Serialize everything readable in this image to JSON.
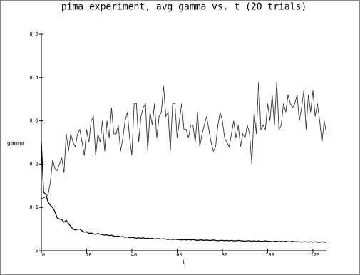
{
  "chart_data": {
    "type": "line",
    "title": "pima experiment, avg gamma vs. t (20 trials)",
    "x_label": "t",
    "y_label": "gamma",
    "x": [
      0,
      1,
      2,
      3,
      4,
      5,
      6,
      7,
      8,
      9,
      10,
      11,
      12,
      13,
      14,
      15,
      16,
      17,
      18,
      19,
      20,
      21,
      22,
      23,
      24,
      25,
      26,
      27,
      28,
      29,
      30,
      31,
      32,
      33,
      34,
      35,
      36,
      37,
      38,
      39,
      40,
      41,
      42,
      43,
      44,
      45,
      46,
      47,
      48,
      49,
      50,
      51,
      52,
      53,
      54,
      55,
      56,
      57,
      58,
      59,
      60,
      61,
      62,
      63,
      64,
      65,
      66,
      67,
      68,
      69,
      70,
      71,
      72,
      73,
      74,
      75,
      76,
      77,
      78,
      79,
      80,
      81,
      82,
      83,
      84,
      85,
      86,
      87,
      88,
      89,
      90,
      91,
      92,
      93,
      94,
      95,
      96,
      97,
      98,
      99,
      100,
      101,
      102,
      103,
      104,
      105,
      106,
      107,
      108,
      109,
      110,
      111,
      112,
      113,
      114,
      115,
      116,
      117,
      118,
      119,
      120,
      121,
      122,
      123,
      124,
      125,
      126
    ],
    "series": [
      {
        "color": "#333333",
        "values": [
          0.12,
          0.122,
          0.125,
          0.13,
          0.16,
          0.21,
          0.19,
          0.185,
          0.2,
          0.215,
          0.18,
          0.27,
          0.23,
          0.27,
          0.25,
          0.24,
          0.27,
          0.28,
          0.25,
          0.22,
          0.28,
          0.25,
          0.3,
          0.31,
          0.22,
          0.27,
          0.25,
          0.3,
          0.23,
          0.3,
          0.26,
          0.33,
          0.27,
          0.27,
          0.29,
          0.23,
          0.26,
          0.3,
          0.32,
          0.26,
          0.22,
          0.34,
          0.34,
          0.25,
          0.31,
          0.33,
          0.34,
          0.23,
          0.32,
          0.29,
          0.34,
          0.26,
          0.31,
          0.32,
          0.38,
          0.31,
          0.32,
          0.23,
          0.34,
          0.34,
          0.26,
          0.3,
          0.34,
          0.28,
          0.28,
          0.26,
          0.29,
          0.29,
          0.25,
          0.32,
          0.24,
          0.27,
          0.29,
          0.31,
          0.28,
          0.25,
          0.23,
          0.24,
          0.29,
          0.32,
          0.3,
          0.26,
          0.25,
          0.24,
          0.27,
          0.3,
          0.26,
          0.29,
          0.24,
          0.27,
          0.26,
          0.29,
          0.27,
          0.2,
          0.32,
          0.27,
          0.39,
          0.28,
          0.29,
          0.28,
          0.34,
          0.3,
          0.36,
          0.29,
          0.39,
          0.28,
          0.29,
          0.34,
          0.32,
          0.36,
          0.34,
          0.33,
          0.34,
          0.36,
          0.3,
          0.33,
          0.37,
          0.28,
          0.36,
          0.32,
          0.37,
          0.31,
          0.34,
          0.3,
          0.25,
          0.3,
          0.27
        ]
      },
      {
        "color": "#000000",
        "values": [
          0.25,
          0.135,
          0.13,
          0.112,
          0.105,
          0.1,
          0.09,
          0.076,
          0.073,
          0.072,
          0.066,
          0.07,
          0.063,
          0.056,
          0.05,
          0.048,
          0.05,
          0.05,
          0.046,
          0.043,
          0.044,
          0.04,
          0.041,
          0.039,
          0.038,
          0.04,
          0.038,
          0.037,
          0.036,
          0.037,
          0.035,
          0.036,
          0.034,
          0.033,
          0.034,
          0.032,
          0.033,
          0.031,
          0.032,
          0.03,
          0.031,
          0.03,
          0.029,
          0.03,
          0.029,
          0.03,
          0.028,
          0.029,
          0.028,
          0.029,
          0.027,
          0.028,
          0.028,
          0.027,
          0.028,
          0.027,
          0.026,
          0.027,
          0.026,
          0.027,
          0.026,
          0.026,
          0.025,
          0.026,
          0.025,
          0.026,
          0.025,
          0.026,
          0.025,
          0.024,
          0.025,
          0.025,
          0.024,
          0.025,
          0.024,
          0.024,
          0.025,
          0.024,
          0.023,
          0.024,
          0.024,
          0.023,
          0.024,
          0.023,
          0.024,
          0.023,
          0.023,
          0.024,
          0.023,
          0.023,
          0.022,
          0.023,
          0.023,
          0.022,
          0.023,
          0.022,
          0.023,
          0.022,
          0.022,
          0.023,
          0.022,
          0.022,
          0.021,
          0.022,
          0.022,
          0.021,
          0.022,
          0.021,
          0.022,
          0.021,
          0.021,
          0.022,
          0.021,
          0.021,
          0.021,
          0.02,
          0.021,
          0.021,
          0.02,
          0.021,
          0.02,
          0.021,
          0.02,
          0.02,
          0.021,
          0.02,
          0.02
        ]
      }
    ],
    "xlim": [
      0,
      126
    ],
    "ylim": [
      0,
      0.5
    ],
    "xticks": [
      0,
      20,
      40,
      60,
      80,
      100,
      120
    ],
    "yticks": [
      0,
      0.1,
      0.2,
      0.3,
      0.4,
      0.5
    ]
  }
}
